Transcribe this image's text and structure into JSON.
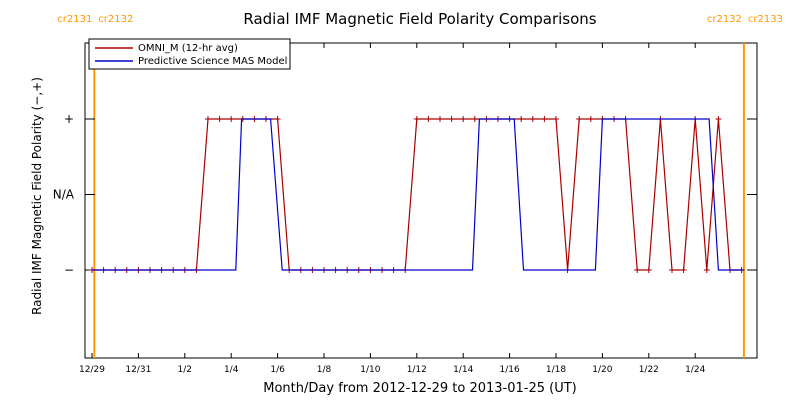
{
  "chart_data": {
    "type": "line",
    "title": "Radial IMF Magnetic Field Polarity Comparisons",
    "xlabel": "Month/Day from 2012-12-29 to 2013-01-25 (UT)",
    "ylabel": "Radial IMF Magnetic Field Polarity (−,+)",
    "x_range_days": [
      0,
      28.2
    ],
    "ylim": [
      -2,
      2
    ],
    "x_ticks": [
      {
        "day": 0,
        "label": "12/29"
      },
      {
        "day": 2,
        "label": "12/31"
      },
      {
        "day": 4,
        "label": "1/2"
      },
      {
        "day": 6,
        "label": "1/4"
      },
      {
        "day": 8,
        "label": "1/6"
      },
      {
        "day": 10,
        "label": "1/8"
      },
      {
        "day": 12,
        "label": "1/10"
      },
      {
        "day": 14,
        "label": "1/12"
      },
      {
        "day": 16,
        "label": "1/14"
      },
      {
        "day": 18,
        "label": "1/16"
      },
      {
        "day": 20,
        "label": "1/18"
      },
      {
        "day": 22,
        "label": "1/20"
      },
      {
        "day": 24,
        "label": "1/22"
      },
      {
        "day": 26,
        "label": "1/24"
      }
    ],
    "y_ticks": [
      {
        "value": 1,
        "label": "+"
      },
      {
        "value": 0,
        "label": "N/A"
      },
      {
        "value": -1,
        "label": "−"
      }
    ],
    "carrington_markers": [
      {
        "day": 0.1,
        "left_label": "cr2131",
        "right_label": "cr2132",
        "color": "#ff9900"
      },
      {
        "day": 28.1,
        "left_label": "cr2132",
        "right_label": "cr2133",
        "color": "#ff9900"
      }
    ],
    "legend": {
      "position": "top-left"
    },
    "series": [
      {
        "name": "OMNI_M (12-hr avg)",
        "color": "#aa0000",
        "markers": true,
        "points": [
          [
            0,
            -1
          ],
          [
            0.5,
            -1
          ],
          [
            1,
            -1
          ],
          [
            1.5,
            -1
          ],
          [
            2,
            -1
          ],
          [
            2.5,
            -1
          ],
          [
            3,
            -1
          ],
          [
            3.5,
            -1
          ],
          [
            4,
            -1
          ],
          [
            4.5,
            -1
          ],
          [
            5,
            1
          ],
          [
            5.5,
            1
          ],
          [
            6,
            1
          ],
          [
            6.5,
            1
          ],
          [
            7,
            1
          ],
          [
            7.5,
            1
          ],
          [
            8,
            1
          ],
          [
            8.5,
            -1
          ],
          [
            9,
            -1
          ],
          [
            9.5,
            -1
          ],
          [
            10,
            -1
          ],
          [
            10.5,
            -1
          ],
          [
            11,
            -1
          ],
          [
            11.5,
            -1
          ],
          [
            12,
            -1
          ],
          [
            12.5,
            -1
          ],
          [
            13,
            -1
          ],
          [
            13.5,
            -1
          ],
          [
            14,
            1
          ],
          [
            14.5,
            1
          ],
          [
            15,
            1
          ],
          [
            15.5,
            1
          ],
          [
            16,
            1
          ],
          [
            16.5,
            1
          ],
          [
            17,
            1
          ],
          [
            17.5,
            1
          ],
          [
            18,
            1
          ],
          [
            18.5,
            1
          ],
          [
            19,
            1
          ],
          [
            19.5,
            1
          ],
          [
            20,
            1
          ],
          [
            20.5,
            -1
          ],
          [
            21,
            1
          ],
          [
            21.5,
            1
          ],
          [
            22,
            1
          ],
          [
            22.5,
            1
          ],
          [
            23,
            1
          ],
          [
            23.5,
            -1
          ],
          [
            24,
            -1
          ],
          [
            24.5,
            1
          ],
          [
            25,
            -1
          ],
          [
            25.5,
            -1
          ],
          [
            26,
            1
          ],
          [
            26.5,
            -1
          ],
          [
            27,
            1
          ],
          [
            27.5,
            -1
          ],
          [
            28,
            -1
          ]
        ]
      },
      {
        "name": "Predictive Science MAS Model",
        "color": "#0000cc",
        "markers": false,
        "points": [
          [
            0,
            -1
          ],
          [
            6.2,
            -1
          ],
          [
            6.45,
            1
          ],
          [
            7.7,
            1
          ],
          [
            8.2,
            -1
          ],
          [
            16.4,
            -1
          ],
          [
            16.7,
            1
          ],
          [
            18.2,
            1
          ],
          [
            18.6,
            -1
          ],
          [
            21.7,
            -1
          ],
          [
            22,
            1
          ],
          [
            26.6,
            1
          ],
          [
            27,
            -1
          ],
          [
            28.1,
            -1
          ]
        ]
      }
    ]
  }
}
